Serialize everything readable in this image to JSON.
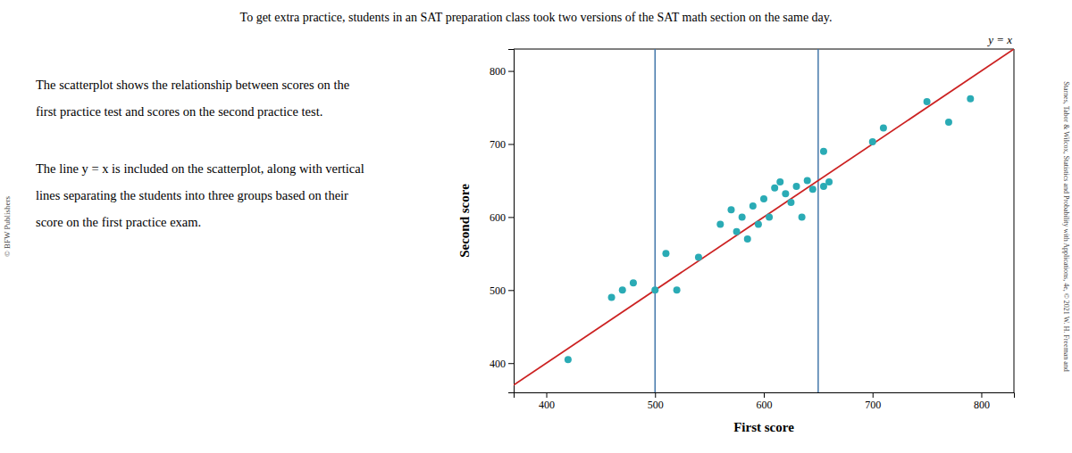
{
  "chart_data": {
    "type": "scatter",
    "title": "To get extra practice, students in an SAT preparation class took two versions of the SAT math section on the same day.",
    "paragraphs": [
      [
        "The scatterplot shows the relationship between scores on the",
        "first practice test and scores on the second practice test."
      ],
      [
        "The line y = x is included on the scatterplot, along with vertical",
        "lines separating the students into three groups based on their",
        "score on the first practice exam."
      ]
    ],
    "publisher": "© BFW Publishers",
    "footnote": "Starnes, Tabor & Wilcox, Statistics and Probability with Applications, 4e, © 2021 W. H. Freeman and",
    "xlabel": "First score",
    "ylabel": "Second score",
    "x": [
      420,
      460,
      470,
      480,
      500,
      510,
      520,
      540,
      560,
      570,
      575,
      580,
      585,
      590,
      595,
      600,
      605,
      610,
      615,
      620,
      625,
      630,
      635,
      640,
      645,
      655,
      655,
      660,
      700,
      710,
      750,
      770,
      790
    ],
    "values": [
      405,
      490,
      500,
      510,
      500,
      550,
      500,
      545,
      590,
      610,
      580,
      600,
      570,
      615,
      590,
      625,
      600,
      640,
      648,
      632,
      620,
      642,
      600,
      650,
      638,
      690,
      642,
      648,
      703,
      722,
      758,
      730,
      762
    ],
    "color": "#2AABB5",
    "marker": "circle",
    "xlim": [
      370,
      830
    ],
    "ylim": [
      360,
      830
    ],
    "xticks": [
      400,
      500,
      600,
      700,
      800
    ],
    "yticks": [
      400,
      500,
      600,
      700,
      800
    ],
    "grid": false,
    "vertical_lines": {
      "x": [
        500,
        650
      ],
      "color": "#4477AA"
    },
    "identity_line": {
      "color": "#CC2222",
      "label": "y = x"
    }
  }
}
